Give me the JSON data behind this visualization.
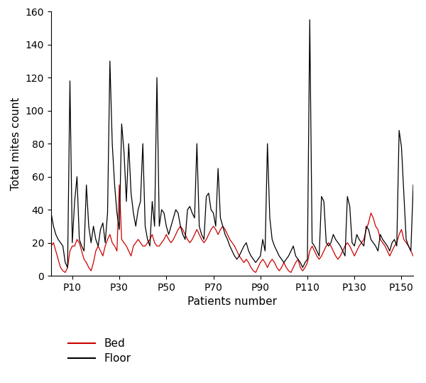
{
  "xlabel": "Patients number",
  "ylabel": "Total mites count",
  "xlim": [
    1,
    155
  ],
  "ylim": [
    0,
    160
  ],
  "yticks": [
    0,
    20,
    40,
    60,
    80,
    100,
    120,
    140,
    160
  ],
  "xtick_positions": [
    10,
    30,
    50,
    70,
    90,
    110,
    130,
    150
  ],
  "xtick_labels": [
    "P10",
    "P30",
    "P50",
    "P70",
    "P90",
    "P110",
    "P130",
    "P150"
  ],
  "bed_color": "#cc0000",
  "floor_color": "#000000",
  "legend_labels": [
    "Bed",
    "Floor"
  ],
  "background_color": "#ffffff",
  "bed": [
    18,
    20,
    15,
    10,
    5,
    3,
    2,
    5,
    15,
    18,
    18,
    22,
    20,
    15,
    10,
    8,
    5,
    3,
    8,
    15,
    18,
    15,
    12,
    18,
    22,
    25,
    20,
    18,
    15,
    55,
    22,
    20,
    18,
    15,
    12,
    18,
    20,
    22,
    20,
    18,
    18,
    20,
    22,
    25,
    20,
    18,
    18,
    20,
    22,
    25,
    22,
    20,
    22,
    25,
    28,
    30,
    28,
    25,
    22,
    20,
    22,
    25,
    28,
    25,
    22,
    20,
    22,
    25,
    28,
    30,
    28,
    25,
    28,
    30,
    28,
    25,
    22,
    20,
    18,
    15,
    12,
    10,
    8,
    10,
    8,
    5,
    3,
    2,
    5,
    8,
    10,
    8,
    5,
    8,
    10,
    8,
    5,
    3,
    5,
    8,
    5,
    3,
    2,
    5,
    8,
    10,
    5,
    3,
    5,
    8,
    15,
    18,
    15,
    12,
    10,
    12,
    15,
    18,
    20,
    18,
    15,
    12,
    10,
    12,
    15,
    18,
    20,
    18,
    15,
    12,
    15,
    18,
    20,
    22,
    28,
    32,
    38,
    35,
    30,
    28,
    22,
    20,
    18,
    15,
    12,
    15,
    18,
    20,
    25,
    28,
    22,
    20,
    18,
    15,
    12
  ],
  "floor": [
    38,
    30,
    25,
    22,
    20,
    18,
    8,
    5,
    118,
    20,
    45,
    60,
    22,
    18,
    15,
    55,
    30,
    20,
    30,
    22,
    18,
    28,
    32,
    20,
    38,
    130,
    80,
    55,
    38,
    28,
    92,
    75,
    45,
    80,
    50,
    38,
    30,
    40,
    45,
    80,
    30,
    22,
    18,
    45,
    30,
    120,
    30,
    40,
    38,
    30,
    25,
    30,
    35,
    40,
    38,
    30,
    25,
    22,
    40,
    42,
    38,
    35,
    80,
    30,
    25,
    22,
    48,
    50,
    40,
    38,
    30,
    65,
    35,
    30,
    25,
    22,
    18,
    15,
    12,
    10,
    12,
    15,
    18,
    20,
    15,
    12,
    10,
    8,
    10,
    12,
    22,
    15,
    80,
    35,
    22,
    18,
    15,
    12,
    10,
    8,
    10,
    12,
    15,
    18,
    12,
    10,
    8,
    5,
    8,
    10,
    155,
    20,
    18,
    15,
    12,
    48,
    45,
    20,
    18,
    20,
    25,
    22,
    20,
    18,
    15,
    12,
    48,
    42,
    20,
    18,
    25,
    22,
    20,
    18,
    30,
    28,
    22,
    20,
    18,
    15,
    25,
    22,
    20,
    18,
    15,
    20,
    22,
    18,
    88,
    78,
    50,
    22,
    18,
    15,
    55
  ]
}
